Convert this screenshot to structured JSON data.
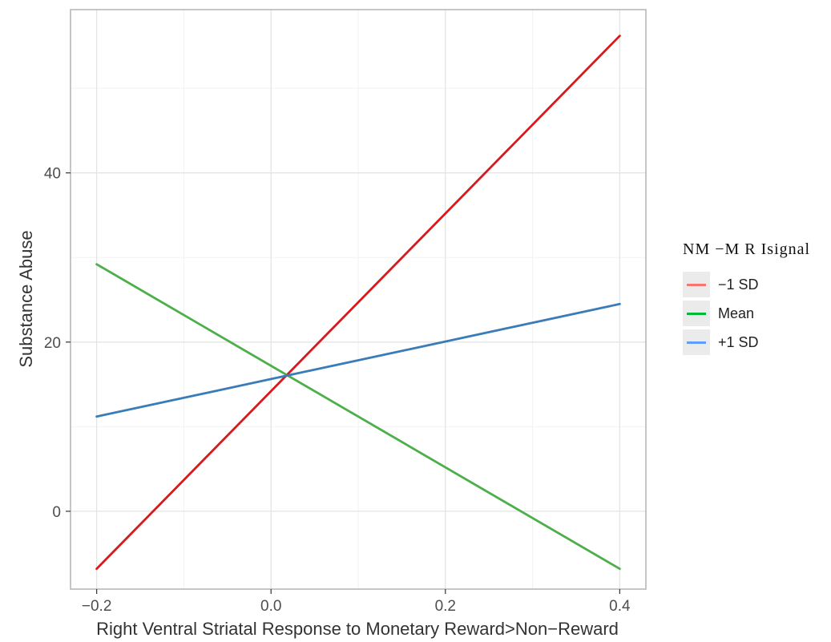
{
  "chart_data": {
    "type": "line",
    "xlabel": "Right Ventral Striatal Response to Monetary Reward>Non−Reward",
    "ylabel": "Substance Abuse",
    "xlim": [
      -0.23,
      0.43
    ],
    "ylim": [
      -9.2,
      59.3
    ],
    "x_ticks": [
      -0.2,
      0.0,
      0.2,
      0.4
    ],
    "x_tick_labels": [
      "−0.2",
      "0.0",
      "0.2",
      "0.4"
    ],
    "y_ticks": [
      0,
      20,
      40
    ],
    "y_tick_labels": [
      "0",
      "20",
      "40"
    ],
    "grid": true,
    "legend": {
      "title": "NM −M R Isignal",
      "placement": "right",
      "items": [
        {
          "label": "−1 SD",
          "key_color": "#f8766d"
        },
        {
          "label": "Mean",
          "key_color": "#00ba38"
        },
        {
          "label": "+1 SD",
          "key_color": "#619cff"
        }
      ]
    },
    "series": [
      {
        "name": "−1 SD",
        "color": "#d7191c",
        "x": [
          -0.2,
          0.4
        ],
        "y": [
          -6.8,
          56.2
        ]
      },
      {
        "name": "Mean",
        "color": "#4daf4a",
        "x": [
          -0.2,
          0.4
        ],
        "y": [
          29.2,
          -6.8
        ]
      },
      {
        "name": "+1 SD",
        "color": "#3a7cb8",
        "x": [
          -0.2,
          0.4
        ],
        "y": [
          11.2,
          24.5
        ]
      }
    ]
  }
}
